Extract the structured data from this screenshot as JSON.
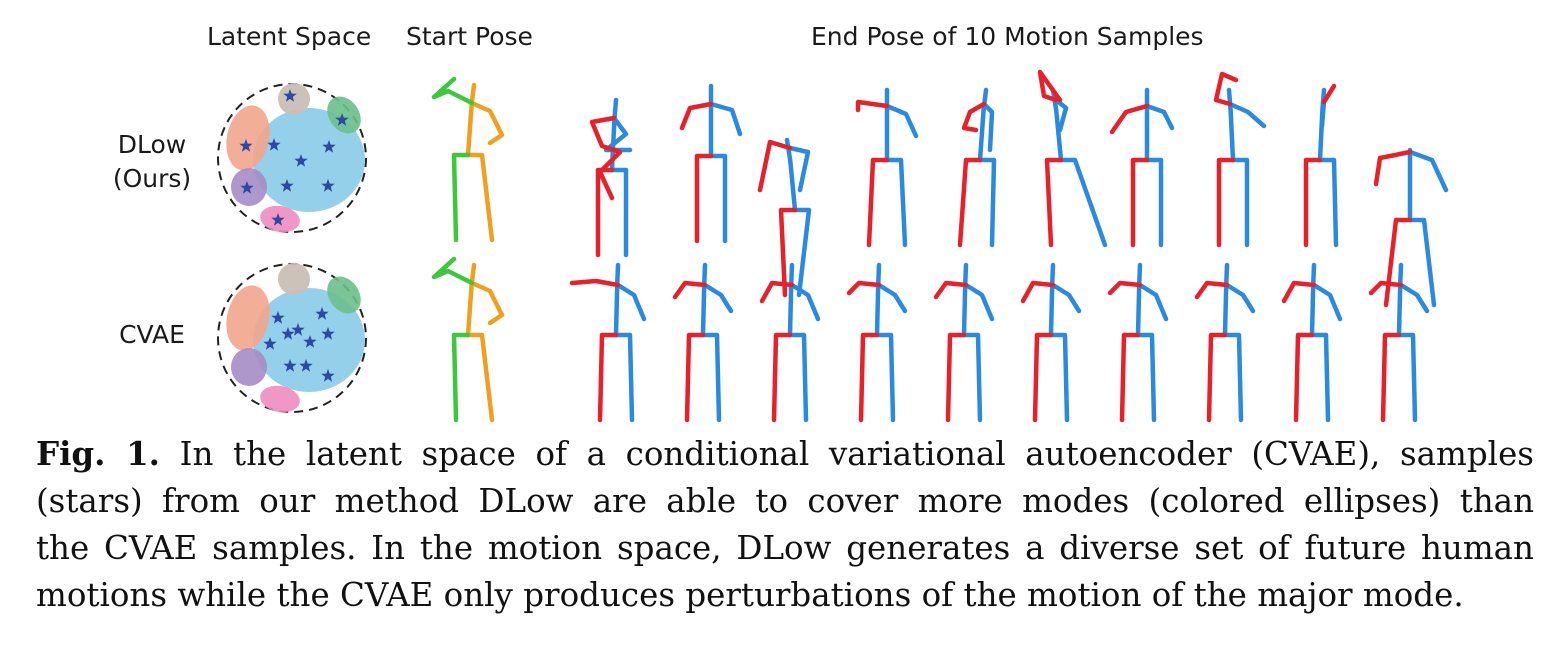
{
  "headers": {
    "latent": "Latent Space",
    "start": "Start Pose",
    "end": "End Pose of 10 Motion Samples"
  },
  "rows": [
    {
      "line1": "DLow",
      "line2": "(Ours)"
    },
    {
      "line1": "CVAE",
      "line2": ""
    }
  ],
  "caption": {
    "label": "Fig. 1.",
    "lines": [
      "In the latent space of a conditional variational autoencoder (CVAE), samples",
      "(stars) from our method DLow are able to cover more modes (colored ellipses) than",
      "the CVAE samples. In the motion space, DLow generates a diverse set of future human",
      "motions while the CVAE only produces perturbations of the motion of the major mode."
    ]
  },
  "colors": {
    "left_limb": "#e8202a",
    "right_limb": "#2a8ae0",
    "start_left": "#3cc83a",
    "start_right": "#f0a020",
    "mode_main": "#8fcdea",
    "mode_orange": "#f2a58c",
    "mode_gray": "#c9bfb6",
    "mode_green": "#6cbf8a",
    "mode_purple": "#a58cc4",
    "mode_pink": "#f08cbf",
    "star": "#2b4aa6"
  }
}
